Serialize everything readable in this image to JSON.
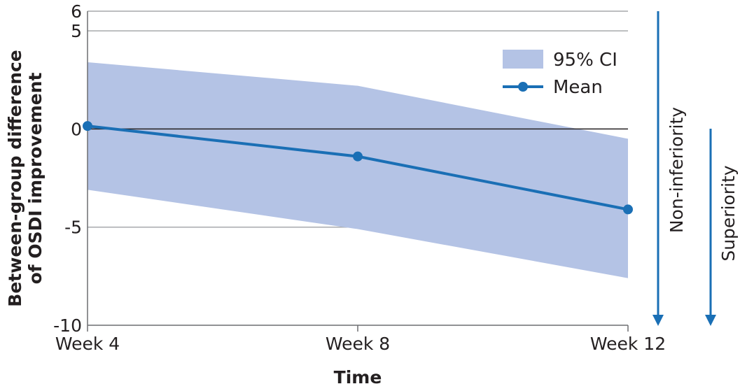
{
  "chart_data": {
    "type": "line",
    "xlabel": "Time",
    "ylabel_lines": [
      "Between-group difference",
      "of OSDI improvement"
    ],
    "categories": [
      "Week 4",
      "Week 8",
      "Week 12"
    ],
    "series": [
      {
        "name": "Mean",
        "values": [
          0.15,
          -1.4,
          -4.1
        ],
        "color": "#1a6fb5"
      }
    ],
    "ci": {
      "name": "95% CI",
      "lower": [
        -3.1,
        -5.1,
        -7.6
      ],
      "upper": [
        3.4,
        2.2,
        -0.5
      ],
      "color": "#b4c3e5"
    },
    "ylim": [
      -10,
      6
    ],
    "yticks": [
      "6",
      "5",
      "0",
      "-5",
      "-10"
    ],
    "ytick_values": [
      6,
      5,
      0,
      -5,
      -10
    ],
    "grid": true,
    "reference_line": 0,
    "legend": {
      "position": "top-right",
      "ci_label": "95% CI",
      "mean_label": "Mean"
    },
    "arrows": [
      {
        "label": "Non-inferiority",
        "color": "#1a6fb5"
      },
      {
        "label": "Superiority",
        "color": "#1a6fb5"
      }
    ]
  }
}
